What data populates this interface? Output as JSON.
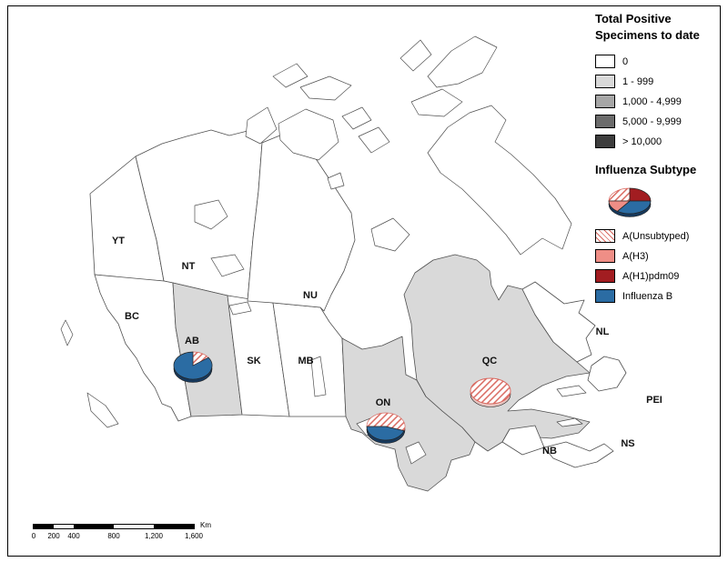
{
  "legend": {
    "title_line1": "Total Positive",
    "title_line2": "Specimens to date",
    "classes": [
      {
        "label": "0",
        "color": "#ffffff"
      },
      {
        "label": "1 - 999",
        "color": "#d9d9d9"
      },
      {
        "label": "1,000 - 4,999",
        "color": "#a6a6a6"
      },
      {
        "label": "5,000 - 9,999",
        "color": "#6b6b6b"
      },
      {
        "label": "> 10,000",
        "color": "#3d3d3d"
      }
    ],
    "subtype_title": "Influenza Subtype",
    "subtypes": [
      {
        "key": "unsubtyped",
        "label": "A(Unsubtyped)",
        "pattern": true,
        "color": "#d9685f"
      },
      {
        "key": "h3",
        "label": "A(H3)",
        "pattern": false,
        "color": "#ef8e86"
      },
      {
        "key": "h1pdm09",
        "label": "A(H1)pdm09",
        "pattern": false,
        "color": "#a21d21"
      },
      {
        "key": "b",
        "label": "Influenza B",
        "pattern": false,
        "color": "#2b6ca3"
      }
    ],
    "sample_pie": {
      "start": -0.25,
      "base_color": "#17395c",
      "slices": [
        {
          "key": "unsubtyped",
          "fraction": 0.25
        },
        {
          "key": "h1pdm09",
          "fraction": 0.25
        },
        {
          "key": "b",
          "fraction": 0.35
        },
        {
          "key": "h3",
          "fraction": 0.15
        }
      ]
    }
  },
  "map": {
    "provinces": [
      {
        "code": "YT"
      },
      {
        "code": "NT"
      },
      {
        "code": "BC"
      },
      {
        "code": "AB"
      },
      {
        "code": "SK"
      },
      {
        "code": "MB"
      },
      {
        "code": "NU"
      },
      {
        "code": "ON"
      },
      {
        "code": "QC"
      },
      {
        "code": "NL"
      },
      {
        "code": "PEI"
      },
      {
        "code": "NB"
      },
      {
        "code": "NS"
      }
    ],
    "pies": [
      {
        "province": "AB",
        "start": 0,
        "base_color": "#17395c",
        "slices": [
          {
            "key": "unsubtyped",
            "fraction": 0.15
          },
          {
            "key": "b",
            "fraction": 0.85
          }
        ]
      },
      {
        "province": "ON",
        "start": -0.25,
        "base_color": "#17395c",
        "slices": [
          {
            "key": "unsubtyped",
            "fraction": 0.55
          },
          {
            "key": "b",
            "fraction": 0.45
          }
        ]
      },
      {
        "province": "QC",
        "start": 0,
        "base_color": "#e8c4c0",
        "slices": [
          {
            "key": "unsubtyped",
            "fraction": 1.0
          }
        ]
      }
    ]
  },
  "scalebar": {
    "tick_labels": [
      "0",
      "200",
      "400",
      "800",
      "1,200",
      "1,600"
    ],
    "unit": "Km"
  }
}
